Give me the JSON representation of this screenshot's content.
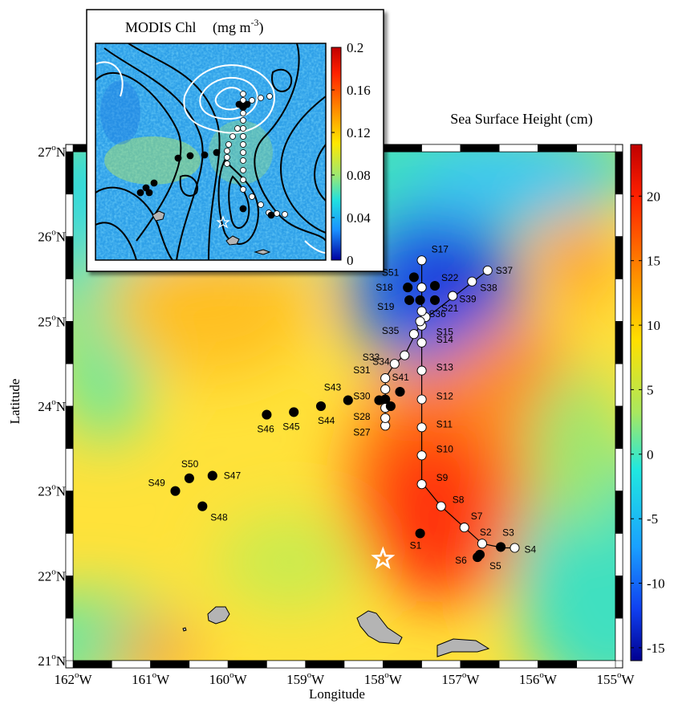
{
  "main_map": {
    "title": "Sea Surface Height (cm)",
    "xlabel": "Longitude",
    "ylabel": "Latitude",
    "xlim": [
      -162,
      -155
    ],
    "ylim": [
      21,
      27
    ],
    "lon_ticks": [
      {
        "v": -162,
        "label": "162"
      },
      {
        "v": -161,
        "label": "161"
      },
      {
        "v": -160,
        "label": "160"
      },
      {
        "v": -159,
        "label": "159"
      },
      {
        "v": -158,
        "label": "158"
      },
      {
        "v": -157,
        "label": "157"
      },
      {
        "v": -156,
        "label": "156"
      },
      {
        "v": -155,
        "label": "155"
      }
    ],
    "lat_ticks": [
      {
        "v": 21,
        "label": "21"
      },
      {
        "v": 22,
        "label": "22"
      },
      {
        "v": 23,
        "label": "23"
      },
      {
        "v": 24,
        "label": "24"
      },
      {
        "v": 25,
        "label": "25"
      },
      {
        "v": 26,
        "label": "26"
      },
      {
        "v": 27,
        "label": "27"
      }
    ],
    "deg_symbol": "o",
    "lon_suffix": "W",
    "lat_suffix": "N",
    "colorbar": {
      "range": [
        -16,
        24
      ],
      "ticks": [
        {
          "v": 20,
          "label": "20"
        },
        {
          "v": 15,
          "label": "15"
        },
        {
          "v": 10,
          "label": "10"
        },
        {
          "v": 5,
          "label": "5"
        },
        {
          "v": 0,
          "label": "0"
        },
        {
          "v": -5,
          "label": "-5"
        },
        {
          "v": -10,
          "label": "-10"
        },
        {
          "v": -15,
          "label": "-15"
        }
      ]
    },
    "colors": {
      "land": "#b4b4b4",
      "line": "#000000",
      "star": "#ffffff"
    },
    "star": {
      "lon": -158.0,
      "lat": 22.2
    },
    "track": [
      [
        -157.5,
        25.7
      ],
      [
        -157.5,
        25.15
      ],
      [
        -157.5,
        24.4
      ],
      [
        -157.5,
        24.1
      ],
      [
        -157.5,
        23.1
      ],
      [
        -157.25,
        22.82
      ],
      [
        -156.95,
        22.57
      ],
      [
        -156.72,
        22.38
      ],
      [
        -156.45,
        22.33
      ],
      [
        -156.3,
        22.33
      ]
    ],
    "track_branch_west": [
      [
        -156.65,
        25.6
      ],
      [
        -157.5,
        25.0
      ],
      [
        -157.72,
        24.6
      ],
      [
        -157.85,
        24.5
      ],
      [
        -157.97,
        24.33
      ],
      [
        -157.97,
        23.77
      ]
    ],
    "stations": [
      {
        "name": "S1",
        "lon": -157.52,
        "lat": 22.5,
        "filled": true,
        "lx": -13,
        "ly": 19
      },
      {
        "name": "S2",
        "lon": -156.72,
        "lat": 22.38,
        "filled": false,
        "lx": -3,
        "ly": -10
      },
      {
        "name": "S3",
        "lon": -156.48,
        "lat": 22.34,
        "filled": true,
        "lx": 2,
        "ly": -14
      },
      {
        "name": "S4",
        "lon": -156.3,
        "lat": 22.33,
        "filled": false,
        "lx": 12,
        "ly": 6
      },
      {
        "name": "S5",
        "lon": -156.75,
        "lat": 22.25,
        "filled": true,
        "lx": 12,
        "ly": 18
      },
      {
        "name": "S6",
        "lon": -156.78,
        "lat": 22.22,
        "filled": true,
        "lx": -28,
        "ly": 8
      },
      {
        "name": "S7",
        "lon": -156.95,
        "lat": 22.57,
        "filled": false,
        "lx": 8,
        "ly": -10
      },
      {
        "name": "S8",
        "lon": -157.25,
        "lat": 22.82,
        "filled": false,
        "lx": 14,
        "ly": -4
      },
      {
        "name": "S9",
        "lon": -157.5,
        "lat": 23.08,
        "filled": false,
        "lx": 18,
        "ly": -4
      },
      {
        "name": "S10",
        "lon": -157.5,
        "lat": 23.42,
        "filled": false,
        "lx": 18,
        "ly": -4
      },
      {
        "name": "S11",
        "lon": -157.5,
        "lat": 23.75,
        "filled": false,
        "lx": 18,
        "ly": 0
      },
      {
        "name": "S12",
        "lon": -157.5,
        "lat": 24.08,
        "filled": false,
        "lx": 18,
        "ly": 0
      },
      {
        "name": "S13",
        "lon": -157.5,
        "lat": 24.42,
        "filled": false,
        "lx": 18,
        "ly": 0
      },
      {
        "name": "S14",
        "lon": -157.5,
        "lat": 24.75,
        "filled": false,
        "lx": 18,
        "ly": 0
      },
      {
        "name": "S15",
        "lon": -157.5,
        "lat": 24.95,
        "filled": false,
        "lx": 18,
        "ly": 12
      },
      {
        "name": "S17",
        "lon": -157.5,
        "lat": 25.72,
        "filled": false,
        "lx": 12,
        "ly": -10
      },
      {
        "name": "S18",
        "lon": -157.68,
        "lat": 25.4,
        "filled": true,
        "lx": -40,
        "ly": 4
      },
      {
        "name": "S19",
        "lon": -157.66,
        "lat": 25.25,
        "filled": true,
        "lx": -40,
        "ly": 12
      },
      {
        "name": "S21",
        "lon": -157.33,
        "lat": 25.25,
        "filled": true,
        "lx": 8,
        "ly": 14
      },
      {
        "name": "S22",
        "lon": -157.33,
        "lat": 25.42,
        "filled": true,
        "lx": 8,
        "ly": -6
      },
      {
        "name": "S27",
        "lon": -157.97,
        "lat": 23.77,
        "filled": false,
        "lx": -40,
        "ly": 12
      },
      {
        "name": "S28",
        "lon": -157.97,
        "lat": 23.86,
        "filled": false,
        "lx": -40,
        "ly": 2
      },
      {
        "name": "S30",
        "lon": -157.97,
        "lat": 24.08,
        "filled": true,
        "lx": -40,
        "ly": 0
      },
      {
        "name": "S31",
        "lon": -157.97,
        "lat": 24.33,
        "filled": false,
        "lx": -40,
        "ly": -6
      },
      {
        "name": "S33",
        "lon": -157.85,
        "lat": 24.5,
        "filled": false,
        "lx": -40,
        "ly": -4
      },
      {
        "name": "S34",
        "lon": -157.72,
        "lat": 24.6,
        "filled": false,
        "lx": -40,
        "ly": 12
      },
      {
        "name": "S35",
        "lon": -157.6,
        "lat": 24.85,
        "filled": false,
        "lx": -40,
        "ly": 0
      },
      {
        "name": "S36",
        "lon": -157.45,
        "lat": 25.05,
        "filled": false,
        "lx": 4,
        "ly": 0
      },
      {
        "name": "S37",
        "lon": -156.65,
        "lat": 25.6,
        "filled": false,
        "lx": 10,
        "ly": 4
      },
      {
        "name": "S38",
        "lon": -156.85,
        "lat": 25.47,
        "filled": false,
        "lx": 10,
        "ly": 12
      },
      {
        "name": "S39",
        "lon": -157.1,
        "lat": 25.3,
        "filled": false,
        "lx": 8,
        "ly": 8
      },
      {
        "name": "S41",
        "lon": -157.78,
        "lat": 24.17,
        "filled": true,
        "lx": -10,
        "ly": -14
      },
      {
        "name": "S43",
        "lon": -158.45,
        "lat": 24.07,
        "filled": true,
        "lx": -30,
        "ly": -12
      },
      {
        "name": "S44",
        "lon": -158.8,
        "lat": 24.0,
        "filled": true,
        "lx": -4,
        "ly": 22
      },
      {
        "name": "S45",
        "lon": -159.15,
        "lat": 23.93,
        "filled": true,
        "lx": -14,
        "ly": 22
      },
      {
        "name": "S46",
        "lon": -159.5,
        "lat": 23.9,
        "filled": true,
        "lx": -12,
        "ly": 22
      },
      {
        "name": "S47",
        "lon": -160.2,
        "lat": 23.18,
        "filled": true,
        "lx": 14,
        "ly": 4
      },
      {
        "name": "S48",
        "lon": -160.33,
        "lat": 22.82,
        "filled": true,
        "lx": 10,
        "ly": 18
      },
      {
        "name": "S49",
        "lon": -160.68,
        "lat": 23.0,
        "filled": true,
        "lx": -34,
        "ly": -6
      },
      {
        "name": "S50",
        "lon": -160.5,
        "lat": 23.15,
        "filled": true,
        "lx": -10,
        "ly": -14
      },
      {
        "name": "S51",
        "lon": -157.6,
        "lat": 25.52,
        "filled": true,
        "lx": -40,
        "ly": -2
      },
      {
        "name": "",
        "lon": -157.5,
        "lat": 25.4,
        "filled": false
      },
      {
        "name": "",
        "lon": -157.5,
        "lat": 25.12,
        "filled": false
      },
      {
        "name": "",
        "lon": -157.97,
        "lat": 23.98,
        "filled": false
      },
      {
        "name": "",
        "lon": -157.97,
        "lat": 24.2,
        "filled": false
      },
      {
        "name": "",
        "lon": -157.52,
        "lat": 25.25,
        "filled": true
      },
      {
        "name": "",
        "lon": -157.9,
        "lat": 24.0,
        "filled": true
      },
      {
        "name": "",
        "lon": -158.05,
        "lat": 24.07,
        "filled": true
      },
      {
        "name": "",
        "lon": -157.52,
        "lat": 25.0,
        "filled": false
      }
    ]
  },
  "inset": {
    "title_main": "MODIS Chl",
    "title_unit": "(mg m",
    "title_exp": "-3",
    "title_close": ")",
    "colorbar": {
      "range": [
        0,
        0.2
      ],
      "ticks": [
        {
          "v": 0.2,
          "label": "0.2"
        },
        {
          "v": 0.16,
          "label": "0.16"
        },
        {
          "v": 0.12,
          "label": "0.12"
        },
        {
          "v": 0.08,
          "label": "0.08"
        },
        {
          "v": 0.04,
          "label": "0.04"
        },
        {
          "v": 0,
          "label": "0"
        }
      ]
    }
  }
}
